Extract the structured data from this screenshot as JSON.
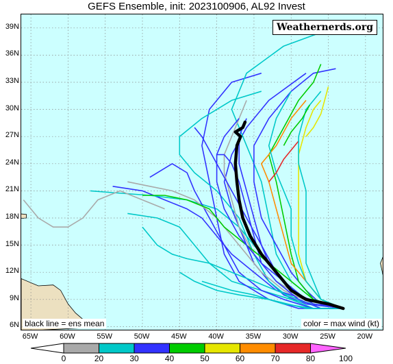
{
  "header": {
    "title": "GEFS Ensemble, init: 2023100906, AL92 Invest"
  },
  "brand": {
    "label": "Weathernerds.org"
  },
  "notes": {
    "mean": "black line = ens mean",
    "color": "color = max wind (kt)"
  },
  "axes": {
    "lat_labels": [
      "6N",
      "9N",
      "12N",
      "15N",
      "18N",
      "21N",
      "24N",
      "27N",
      "30N",
      "33N",
      "36N",
      "39N"
    ],
    "lat_values": [
      6,
      9,
      12,
      15,
      18,
      21,
      24,
      27,
      30,
      33,
      36,
      39
    ],
    "lon_labels": [
      "65W",
      "60W",
      "55W",
      "50W",
      "45W",
      "40W",
      "35W",
      "30W",
      "25W",
      "20W"
    ],
    "lon_values": [
      -65,
      -60,
      -55,
      -50,
      -45,
      -40,
      -35,
      -30,
      -25,
      -20
    ],
    "lon_range": [
      -66.3,
      -17.5
    ],
    "lat_range": [
      5.5,
      40.5
    ]
  },
  "colorbar": {
    "ticks": [
      "0",
      "20",
      "30",
      "40",
      "50",
      "60",
      "70",
      "80",
      "100"
    ],
    "colors": [
      "#a9a9a9",
      "#00c8c8",
      "#3232ff",
      "#00cc00",
      "#e6e600",
      "#ff8c00",
      "#e62828",
      "#ff64ff"
    ]
  },
  "tracks": [
    {
      "color": "#3232ff",
      "pts": [
        [
          -23,
          8
        ],
        [
          -28,
          8.5
        ],
        [
          -31,
          9.5
        ],
        [
          -33,
          11
        ],
        [
          -35,
          13
        ],
        [
          -36,
          15
        ],
        [
          -37,
          17
        ],
        [
          -38,
          19
        ],
        [
          -39,
          22
        ],
        [
          -38,
          25
        ],
        [
          -36,
          28
        ],
        [
          -33,
          31
        ],
        [
          -28,
          34
        ]
      ]
    },
    {
      "color": "#3232ff",
      "pts": [
        [
          -23,
          8
        ],
        [
          -28,
          9
        ],
        [
          -32,
          10
        ],
        [
          -35,
          12
        ],
        [
          -38,
          14
        ],
        [
          -40,
          16
        ],
        [
          -42,
          18
        ],
        [
          -44,
          19
        ],
        [
          -47,
          20
        ],
        [
          -50,
          21
        ],
        [
          -54,
          21.5
        ]
      ]
    },
    {
      "color": "#00c8c8",
      "pts": [
        [
          -23,
          8
        ],
        [
          -27,
          8.5
        ],
        [
          -30,
          9
        ],
        [
          -34,
          10
        ],
        [
          -38,
          11
        ],
        [
          -41,
          13
        ],
        [
          -43,
          15
        ],
        [
          -45,
          17
        ],
        [
          -48,
          18
        ],
        [
          -52,
          18.5
        ]
      ]
    },
    {
      "color": "#00c8c8",
      "pts": [
        [
          -23,
          8
        ],
        [
          -28,
          9
        ],
        [
          -31,
          11
        ],
        [
          -34,
          14
        ],
        [
          -37,
          17
        ],
        [
          -40,
          19
        ],
        [
          -44,
          20
        ],
        [
          -49,
          20.5
        ],
        [
          -54,
          20.8
        ],
        [
          -57,
          21
        ]
      ]
    },
    {
      "color": "#3232ff",
      "pts": [
        [
          -23,
          8
        ],
        [
          -29,
          8
        ],
        [
          -33,
          9
        ],
        [
          -37,
          11
        ],
        [
          -39,
          14
        ],
        [
          -40,
          18
        ],
        [
          -41,
          22
        ],
        [
          -42,
          26
        ],
        [
          -41,
          30
        ],
        [
          -38,
          33
        ],
        [
          -34,
          34
        ]
      ]
    },
    {
      "color": "#00c8c8",
      "pts": [
        [
          -23,
          8
        ],
        [
          -27,
          9
        ],
        [
          -30,
          11
        ],
        [
          -32,
          14
        ],
        [
          -33,
          18
        ],
        [
          -34,
          22
        ],
        [
          -36,
          26
        ],
        [
          -38,
          30
        ],
        [
          -36,
          34
        ],
        [
          -31,
          37
        ],
        [
          -26,
          38.5
        ]
      ]
    },
    {
      "color": "#00c8c8",
      "pts": [
        [
          -23,
          8
        ],
        [
          -27,
          8
        ],
        [
          -30,
          9
        ],
        [
          -33,
          11
        ],
        [
          -35,
          14
        ],
        [
          -37,
          18
        ],
        [
          -40,
          21
        ],
        [
          -43,
          23
        ],
        [
          -45,
          25
        ],
        [
          -45,
          27
        ],
        [
          -42,
          29
        ],
        [
          -38,
          31
        ],
        [
          -34,
          32
        ]
      ]
    },
    {
      "color": "#3232ff",
      "pts": [
        [
          -23,
          8
        ],
        [
          -26,
          8.5
        ],
        [
          -28,
          10
        ],
        [
          -30,
          12
        ],
        [
          -32,
          15
        ],
        [
          -34,
          18
        ],
        [
          -35,
          22
        ],
        [
          -35,
          26
        ],
        [
          -33,
          29
        ],
        [
          -30,
          32
        ],
        [
          -27,
          34
        ],
        [
          -24,
          34.5
        ]
      ]
    },
    {
      "color": "#00cc00",
      "pts": [
        [
          -23,
          8
        ],
        [
          -27,
          9
        ],
        [
          -29,
          11
        ],
        [
          -30,
          14
        ],
        [
          -31,
          18
        ],
        [
          -32,
          22
        ],
        [
          -33,
          25
        ],
        [
          -31,
          28
        ],
        [
          -29,
          31
        ],
        [
          -27,
          33
        ],
        [
          -26,
          35
        ]
      ]
    },
    {
      "color": "#e6e600",
      "pts": [
        [
          -23,
          8
        ],
        [
          -26,
          9
        ],
        [
          -28,
          11
        ],
        [
          -29,
          14
        ],
        [
          -29,
          18
        ],
        [
          -29,
          22
        ],
        [
          -29,
          25
        ],
        [
          -28,
          28
        ],
        [
          -27,
          30
        ],
        [
          -26,
          31
        ]
      ]
    },
    {
      "color": "#ff8c00",
      "pts": [
        [
          -23,
          8
        ],
        [
          -26,
          9
        ],
        [
          -28,
          11
        ],
        [
          -30,
          13
        ],
        [
          -31,
          16
        ],
        [
          -32,
          19
        ],
        [
          -33,
          22
        ],
        [
          -34,
          24
        ],
        [
          -32,
          26
        ],
        [
          -30,
          29
        ],
        [
          -28,
          31
        ]
      ]
    },
    {
      "color": "#3232ff",
      "pts": [
        [
          -23,
          8
        ],
        [
          -27,
          8
        ],
        [
          -31,
          9
        ],
        [
          -34,
          10
        ],
        [
          -37,
          12
        ],
        [
          -39,
          15
        ],
        [
          -41,
          18
        ],
        [
          -43,
          21
        ],
        [
          -44,
          23
        ],
        [
          -46,
          24
        ],
        [
          -49,
          22.5
        ]
      ]
    },
    {
      "color": "#00c8c8",
      "pts": [
        [
          -23,
          8
        ],
        [
          -26,
          8
        ],
        [
          -29,
          9
        ],
        [
          -32,
          10
        ],
        [
          -35,
          11
        ],
        [
          -38,
          12
        ],
        [
          -41,
          13
        ],
        [
          -44,
          13.5
        ],
        [
          -46,
          14
        ],
        [
          -48,
          15
        ],
        [
          -50,
          17
        ]
      ]
    },
    {
      "color": "#a9a9a9",
      "pts": [
        [
          -23,
          8
        ],
        [
          -27,
          8.5
        ],
        [
          -31,
          10
        ],
        [
          -34,
          12
        ],
        [
          -37,
          15
        ],
        [
          -40,
          18
        ],
        [
          -43,
          20
        ],
        [
          -46,
          21
        ],
        [
          -49,
          21.5
        ],
        [
          -52,
          22
        ]
      ]
    },
    {
      "color": "#a9a9a9",
      "pts": [
        [
          -23,
          8
        ],
        [
          -28,
          9
        ],
        [
          -32,
          11
        ],
        [
          -35,
          14
        ],
        [
          -37,
          17
        ],
        [
          -38,
          20
        ],
        [
          -39,
          23
        ],
        [
          -39,
          25
        ],
        [
          -38,
          27
        ],
        [
          -37,
          29
        ],
        [
          -36,
          31
        ]
      ]
    },
    {
      "color": "#a9a9a9",
      "pts": [
        [
          -47,
          19
        ],
        [
          -50,
          20
        ],
        [
          -53,
          21
        ],
        [
          -56,
          20
        ],
        [
          -58,
          18
        ],
        [
          -60,
          17
        ],
        [
          -62,
          17
        ],
        [
          -64,
          18
        ],
        [
          -66,
          20
        ]
      ]
    },
    {
      "color": "#00c8c8",
      "pts": [
        [
          -23,
          8
        ],
        [
          -26,
          9
        ],
        [
          -28,
          11
        ],
        [
          -29,
          13
        ],
        [
          -30,
          16
        ],
        [
          -30,
          19
        ],
        [
          -31,
          21
        ],
        [
          -32,
          23
        ],
        [
          -33,
          26
        ],
        [
          -32,
          29
        ],
        [
          -30,
          32
        ]
      ]
    },
    {
      "color": "#3232ff",
      "pts": [
        [
          -23,
          8
        ],
        [
          -26,
          8
        ],
        [
          -29,
          9
        ],
        [
          -32,
          11
        ],
        [
          -34,
          13
        ],
        [
          -35,
          16
        ],
        [
          -36,
          19
        ],
        [
          -37,
          22
        ],
        [
          -38,
          24
        ],
        [
          -39,
          25
        ],
        [
          -40,
          25
        ]
      ]
    },
    {
      "color": "#00cc00",
      "pts": [
        [
          -23,
          8
        ],
        [
          -27,
          9
        ],
        [
          -30,
          11
        ],
        [
          -33,
          13
        ],
        [
          -36,
          15
        ],
        [
          -39,
          17
        ],
        [
          -41,
          19
        ],
        [
          -44,
          20
        ],
        [
          -47,
          20.5
        ],
        [
          -50,
          20.5
        ]
      ]
    },
    {
      "color": "#e62828",
      "pts": [
        [
          -33,
          22
        ],
        [
          -32,
          23
        ],
        [
          -31,
          24.5
        ],
        [
          -30,
          25.5
        ],
        [
          -29,
          26.5
        ]
      ]
    },
    {
      "color": "#3232ff",
      "pts": [
        [
          -23,
          8
        ],
        [
          -28,
          9
        ],
        [
          -31,
          11
        ],
        [
          -34,
          13
        ],
        [
          -37,
          16
        ],
        [
          -39,
          19
        ],
        [
          -40,
          22
        ],
        [
          -40,
          25
        ],
        [
          -39,
          27
        ],
        [
          -37,
          29
        ]
      ]
    },
    {
      "color": "#00c8c8",
      "pts": [
        [
          -23,
          8
        ],
        [
          -27,
          8
        ],
        [
          -31,
          8.5
        ],
        [
          -35,
          9.5
        ],
        [
          -38,
          10
        ],
        [
          -40,
          10.5
        ],
        [
          -42,
          11
        ]
      ]
    },
    {
      "color": "#3232ff",
      "pts": [
        [
          -23,
          8
        ],
        [
          -26,
          8.5
        ],
        [
          -29,
          9.5
        ],
        [
          -31,
          11
        ],
        [
          -33,
          13
        ],
        [
          -34,
          15
        ],
        [
          -36,
          18
        ],
        [
          -38,
          21
        ],
        [
          -40,
          24
        ],
        [
          -42,
          27
        ],
        [
          -43,
          28
        ]
      ]
    },
    {
      "color": "#00c8c8",
      "pts": [
        [
          -23,
          8
        ],
        [
          -26,
          9
        ],
        [
          -27,
          11
        ],
        [
          -28,
          13
        ],
        [
          -28,
          15
        ],
        [
          -28,
          18
        ],
        [
          -28,
          21
        ],
        [
          -29,
          24
        ],
        [
          -29,
          27
        ],
        [
          -28,
          30
        ],
        [
          -26,
          32
        ]
      ]
    },
    {
      "color": "#3232ff",
      "pts": [
        [
          -23,
          8
        ],
        [
          -27,
          8.5
        ],
        [
          -30,
          10
        ],
        [
          -32,
          12
        ],
        [
          -34,
          15
        ],
        [
          -35,
          18
        ],
        [
          -36,
          21
        ],
        [
          -37,
          24
        ],
        [
          -37,
          27
        ],
        [
          -36,
          29
        ]
      ]
    },
    {
      "color": "#e6e600",
      "pts": [
        [
          -28,
          27
        ],
        [
          -27,
          28
        ],
        [
          -26,
          29.5
        ],
        [
          -25.5,
          31
        ],
        [
          -25,
          32.5
        ]
      ]
    },
    {
      "color": "#00cc00",
      "pts": [
        [
          -31,
          26
        ],
        [
          -30,
          27.5
        ],
        [
          -28.5,
          29
        ],
        [
          -27.5,
          30.5
        ]
      ]
    },
    {
      "color": "#00c8c8",
      "pts": [
        [
          -23,
          8
        ],
        [
          -28,
          8
        ],
        [
          -33,
          9
        ],
        [
          -37,
          9.5
        ],
        [
          -40,
          10
        ],
        [
          -43,
          11
        ],
        [
          -45,
          12
        ]
      ]
    }
  ],
  "mean_track": [
    [
      -23,
      8
    ],
    [
      -25,
      8.5
    ],
    [
      -28,
      9
    ],
    [
      -30,
      10
    ],
    [
      -32,
      12
    ],
    [
      -34,
      14
    ],
    [
      -35.5,
      16
    ],
    [
      -36.5,
      18
    ],
    [
      -37,
      20
    ],
    [
      -37.3,
      22
    ],
    [
      -37.5,
      24
    ],
    [
      -37.3,
      26
    ],
    [
      -36.8,
      27
    ],
    [
      -37.5,
      27.5
    ],
    [
      -36.5,
      28
    ],
    [
      -36.2,
      28.6
    ]
  ],
  "land": [
    {
      "name": "west-africa",
      "pts": [
        [
          -17.5,
          40.5
        ],
        [
          -17.5,
          14
        ],
        [
          -18,
          13
        ],
        [
          -17.6,
          11.5
        ],
        [
          -17.5,
          11
        ]
      ]
    },
    {
      "name": "south-america",
      "pts": [
        [
          -66.3,
          11.3
        ],
        [
          -64,
          10.5
        ],
        [
          -62,
          10.6
        ],
        [
          -61,
          10
        ],
        [
          -60,
          8.5
        ],
        [
          -59,
          7.5
        ],
        [
          -58,
          6.8
        ],
        [
          -57,
          5.9
        ],
        [
          -66.3,
          5.5
        ]
      ]
    },
    {
      "name": "puerto-rico",
      "pts": [
        [
          -67,
          18.5
        ],
        [
          -65.6,
          18.4
        ],
        [
          -65.6,
          18
        ],
        [
          -67,
          17.9
        ]
      ]
    }
  ]
}
